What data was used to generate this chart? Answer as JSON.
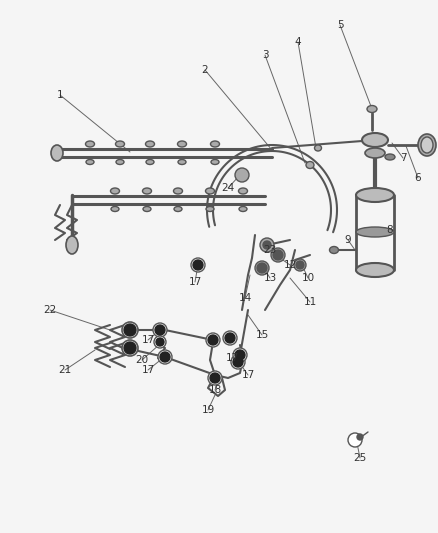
{
  "background_color": "#f0f0f0",
  "line_color": "#555555",
  "label_color": "#333333",
  "fig_width": 4.38,
  "fig_height": 5.33,
  "dpi": 100
}
